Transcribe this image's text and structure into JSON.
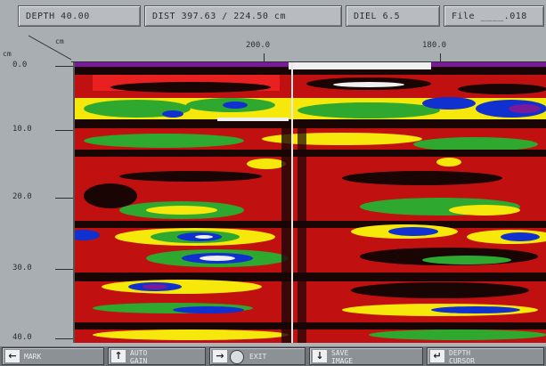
{
  "status": {
    "depth": "DEPTH 40.00",
    "dist": "DIST 397.63 / 224.50 cm",
    "diel": "DIEL 6.5",
    "file": "File ____.018"
  },
  "axes": {
    "depth_unit": "cm",
    "dist_unit": "cm",
    "depth_ticks": [
      "0.0",
      "10.0",
      "20.0",
      "30.0",
      "40.0"
    ],
    "dist_ticks": [
      "200.0",
      "180.0"
    ]
  },
  "toolbar": {
    "buttons": [
      {
        "icon": "arrow-left-icon",
        "glyph": "←",
        "label": "MARK"
      },
      {
        "icon": "arrow-up-icon",
        "glyph": "↑",
        "label": "AUTO\nGAIN"
      },
      {
        "icon": "arrow-right-icon",
        "glyph": "→",
        "label": "EXIT"
      },
      {
        "icon": "arrow-down-icon",
        "glyph": "↓",
        "label": "SAVE\nIMAGE"
      },
      {
        "icon": "return-icon",
        "glyph": "↵",
        "label": "DEPTH\nCURSOR"
      }
    ]
  },
  "colors": {
    "background": "#c01010",
    "dark": "#1a0505",
    "yellow": "#f5e80a",
    "green": "#2fa82f",
    "blue": "#1030d0",
    "purple": "#7a1a9a",
    "white": "#f0f0f0"
  }
}
